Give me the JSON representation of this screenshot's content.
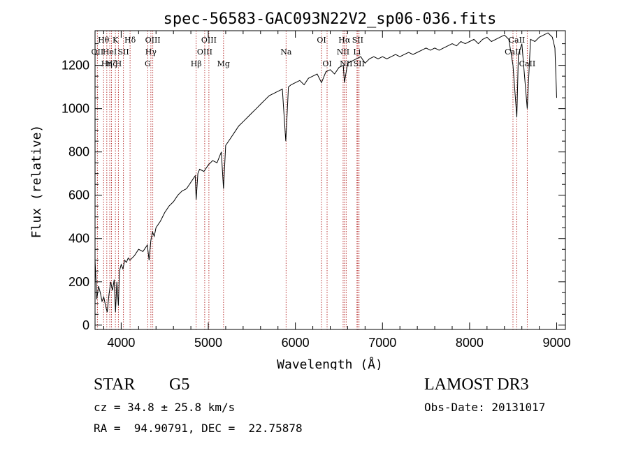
{
  "chart_data": {
    "type": "line",
    "title": "spec-56583-GAC093N22V2_sp06-036.fits",
    "xlabel": "Wavelength (Å)",
    "ylabel": "Flux (relative)",
    "xlim": [
      3700,
      9100
    ],
    "ylim": [
      -20,
      1360
    ],
    "xticks": [
      4000,
      5000,
      6000,
      7000,
      8000,
      9000
    ],
    "xtick_labels": [
      "4000",
      "5000",
      "6000",
      "7000",
      "8000",
      "9000"
    ],
    "yticks": [
      0,
      200,
      400,
      600,
      800,
      1000,
      1200
    ],
    "ytick_labels": [
      "0",
      "200",
      "400",
      "600",
      "800",
      "1000",
      "1200"
    ],
    "series": [
      {
        "name": "flux",
        "color": "#000000",
        "x": [
          3700,
          3720,
          3740,
          3760,
          3780,
          3800,
          3820,
          3840,
          3860,
          3880,
          3900,
          3920,
          3935,
          3950,
          3968,
          3980,
          4000,
          4020,
          4040,
          4060,
          4080,
          4100,
          4150,
          4200,
          4250,
          4300,
          4320,
          4340,
          4360,
          4380,
          4400,
          4450,
          4500,
          4550,
          4600,
          4650,
          4700,
          4750,
          4800,
          4850,
          4861,
          4880,
          4900,
          4950,
          5000,
          5050,
          5100,
          5150,
          5175,
          5200,
          5250,
          5300,
          5350,
          5400,
          5450,
          5500,
          5550,
          5600,
          5650,
          5700,
          5750,
          5800,
          5850,
          5890,
          5896,
          5920,
          5950,
          6000,
          6050,
          6100,
          6150,
          6200,
          6250,
          6300,
          6350,
          6400,
          6450,
          6500,
          6550,
          6563,
          6600,
          6650,
          6700,
          6750,
          6800,
          6850,
          6900,
          6950,
          7000,
          7050,
          7100,
          7150,
          7200,
          7250,
          7300,
          7350,
          7400,
          7450,
          7500,
          7550,
          7600,
          7650,
          7700,
          7750,
          7800,
          7850,
          7900,
          7950,
          8000,
          8050,
          8100,
          8150,
          8200,
          8250,
          8300,
          8350,
          8400,
          8450,
          8498,
          8542,
          8560,
          8600,
          8662,
          8700,
          8750,
          8800,
          8850,
          8900,
          8950,
          8980,
          9000
        ],
        "values": [
          300,
          120,
          180,
          150,
          110,
          130,
          90,
          60,
          140,
          200,
          160,
          210,
          60,
          200,
          90,
          250,
          280,
          260,
          300,
          290,
          310,
          300,
          320,
          350,
          340,
          370,
          300,
          390,
          430,
          410,
          450,
          480,
          520,
          550,
          570,
          600,
          620,
          630,
          660,
          690,
          580,
          700,
          720,
          710,
          740,
          760,
          750,
          800,
          630,
          830,
          860,
          890,
          920,
          940,
          960,
          980,
          1000,
          1020,
          1040,
          1060,
          1070,
          1080,
          1090,
          850,
          900,
          1100,
          1110,
          1120,
          1130,
          1110,
          1140,
          1150,
          1160,
          1120,
          1170,
          1180,
          1160,
          1190,
          1200,
          1120,
          1210,
          1220,
          1230,
          1240,
          1210,
          1230,
          1240,
          1230,
          1240,
          1230,
          1240,
          1250,
          1240,
          1250,
          1260,
          1250,
          1260,
          1270,
          1280,
          1270,
          1280,
          1270,
          1280,
          1290,
          1300,
          1290,
          1310,
          1300,
          1310,
          1320,
          1300,
          1320,
          1330,
          1310,
          1320,
          1330,
          1340,
          1320,
          1200,
          960,
          1250,
          1300,
          1000,
          1320,
          1310,
          1330,
          1340,
          1350,
          1330,
          1280,
          1050
        ]
      }
    ],
    "lines": [
      {
        "wl": 3727,
        "label": "OII",
        "row": 2
      },
      {
        "wl": 3798,
        "label": "Hθ",
        "row": 1
      },
      {
        "wl": 3835,
        "label": "Hη",
        "row": 3
      },
      {
        "wl": 3869,
        "label": "HeI",
        "row": 2
      },
      {
        "wl": 3889,
        "label": "Hζ",
        "row": 3
      },
      {
        "wl": 3934,
        "label": "K",
        "row": 1
      },
      {
        "wl": 3968,
        "label": "H",
        "row": 3
      },
      {
        "wl": 4026,
        "label": "SII",
        "row": 2
      },
      {
        "wl": 4102,
        "label": "Hδ",
        "row": 1
      },
      {
        "wl": 4305,
        "label": "G",
        "row": 3
      },
      {
        "wl": 4341,
        "label": "Hγ",
        "row": 2
      },
      {
        "wl": 4363,
        "label": "OIII",
        "row": 1
      },
      {
        "wl": 4861,
        "label": "Hβ",
        "row": 3
      },
      {
        "wl": 4959,
        "label": "OIII",
        "row": 2
      },
      {
        "wl": 5007,
        "label": "OIII",
        "row": 1
      },
      {
        "wl": 5175,
        "label": "Mg",
        "row": 3
      },
      {
        "wl": 5893,
        "label": "Na",
        "row": 2
      },
      {
        "wl": 6300,
        "label": "OI",
        "row": 1
      },
      {
        "wl": 6364,
        "label": "OI",
        "row": 3
      },
      {
        "wl": 6548,
        "label": "NII",
        "row": 2
      },
      {
        "wl": 6563,
        "label": "Hα",
        "row": 1
      },
      {
        "wl": 6583,
        "label": "NII",
        "row": 3
      },
      {
        "wl": 6707,
        "label": "Li",
        "row": 2
      },
      {
        "wl": 6716,
        "label": "SII",
        "row": 1
      },
      {
        "wl": 6731,
        "label": "SII",
        "row": 3
      },
      {
        "wl": 8498,
        "label": "CaII",
        "row": 2
      },
      {
        "wl": 8542,
        "label": "CaII",
        "row": 1
      },
      {
        "wl": 8662,
        "label": "CaII",
        "row": 3
      }
    ]
  },
  "info": {
    "object_class": "STAR",
    "subclass": "G5",
    "survey": "LAMOST DR3",
    "cz": "cz = 34.8 ± 25.8 km/s",
    "obs_date": "Obs-Date: 20131017",
    "coords": "RA =  94.90791, DEC =  22.75878"
  },
  "colors": {
    "line_marker": "#b22222",
    "spectrum": "#000000",
    "axis": "#000000"
  }
}
